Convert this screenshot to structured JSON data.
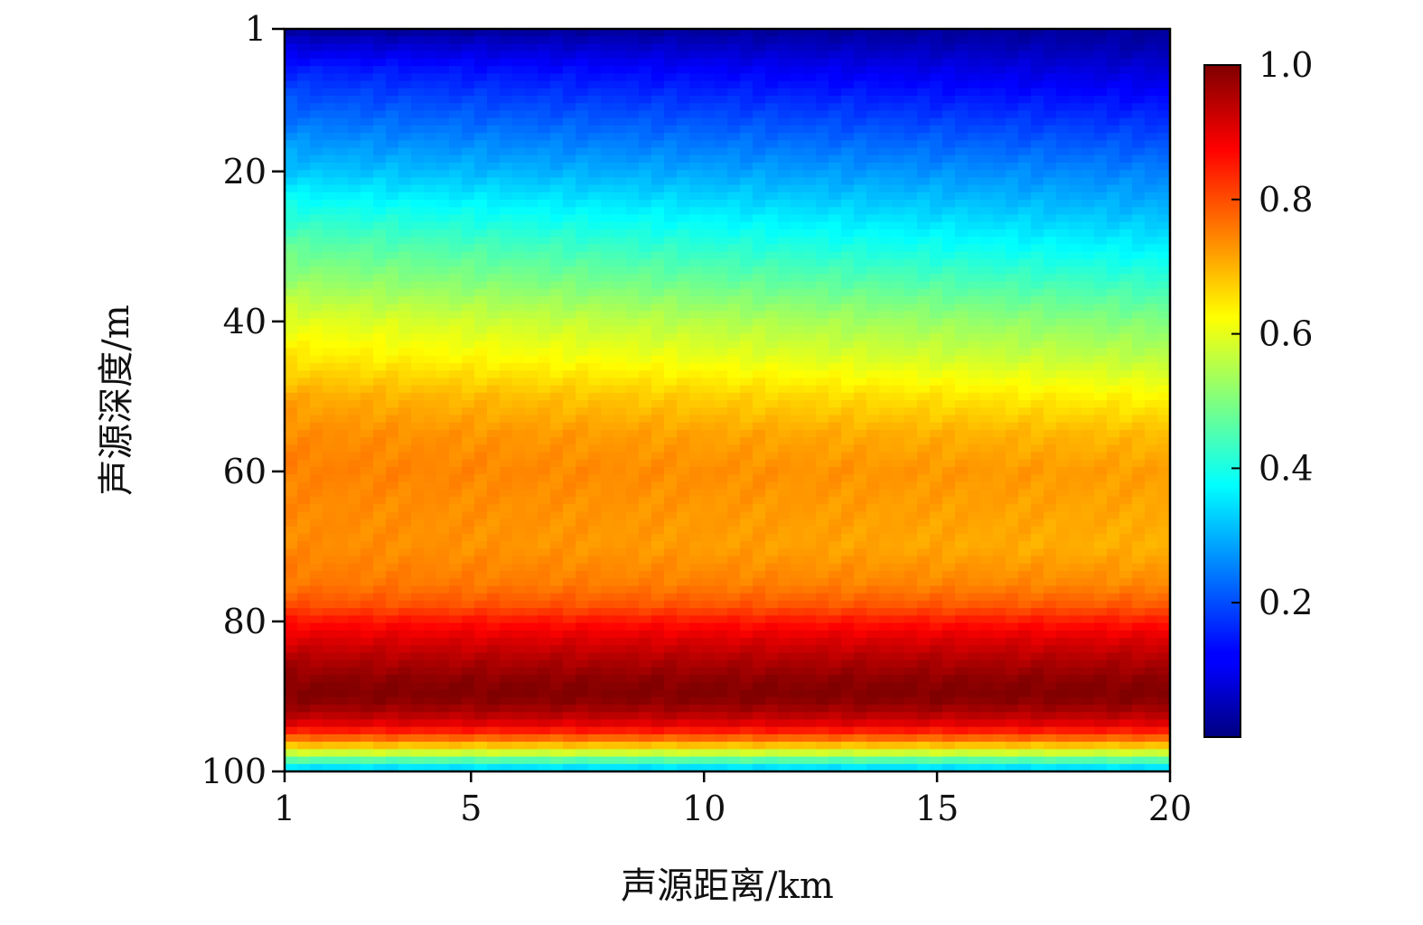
{
  "chart_data": {
    "type": "heatmap",
    "title": "",
    "xlabel": "声源距离/km",
    "ylabel": "声源深度/m",
    "x_ticks": [
      1,
      5,
      10,
      15,
      20
    ],
    "y_ticks": [
      1,
      20,
      40,
      60,
      80,
      100
    ],
    "xlim": [
      1,
      20
    ],
    "ylim": [
      1,
      100
    ],
    "y_axis_inverted": true,
    "colormap": "jet",
    "colorbar": {
      "min": 0,
      "max": 1.0,
      "ticks": [
        0.2,
        0.4,
        0.6,
        0.8,
        1.0
      ],
      "tick_labels": [
        "0.2",
        "0.4",
        "0.6",
        "0.8",
        "1.0"
      ],
      "placement": "right"
    },
    "depth_profile": {
      "depths": [
        1,
        3,
        6,
        10,
        15,
        20,
        25,
        30,
        35,
        40,
        45,
        50,
        55,
        60,
        65,
        70,
        75,
        78,
        80,
        82,
        85,
        88,
        90,
        92,
        94,
        95,
        96,
        97,
        98,
        99,
        100
      ],
      "values_at_range_1km": [
        0.02,
        0.08,
        0.15,
        0.2,
        0.26,
        0.32,
        0.4,
        0.47,
        0.53,
        0.6,
        0.65,
        0.71,
        0.74,
        0.75,
        0.74,
        0.74,
        0.76,
        0.8,
        0.86,
        0.9,
        0.95,
        0.99,
        1.0,
        0.96,
        0.89,
        0.82,
        0.74,
        0.64,
        0.52,
        0.4,
        0.3
      ],
      "values_at_range_20km": [
        0.03,
        0.04,
        0.08,
        0.13,
        0.19,
        0.25,
        0.3,
        0.36,
        0.43,
        0.5,
        0.56,
        0.63,
        0.69,
        0.72,
        0.71,
        0.7,
        0.74,
        0.79,
        0.85,
        0.9,
        0.95,
        0.99,
        1.0,
        0.96,
        0.89,
        0.82,
        0.74,
        0.64,
        0.52,
        0.4,
        0.3
      ]
    }
  }
}
